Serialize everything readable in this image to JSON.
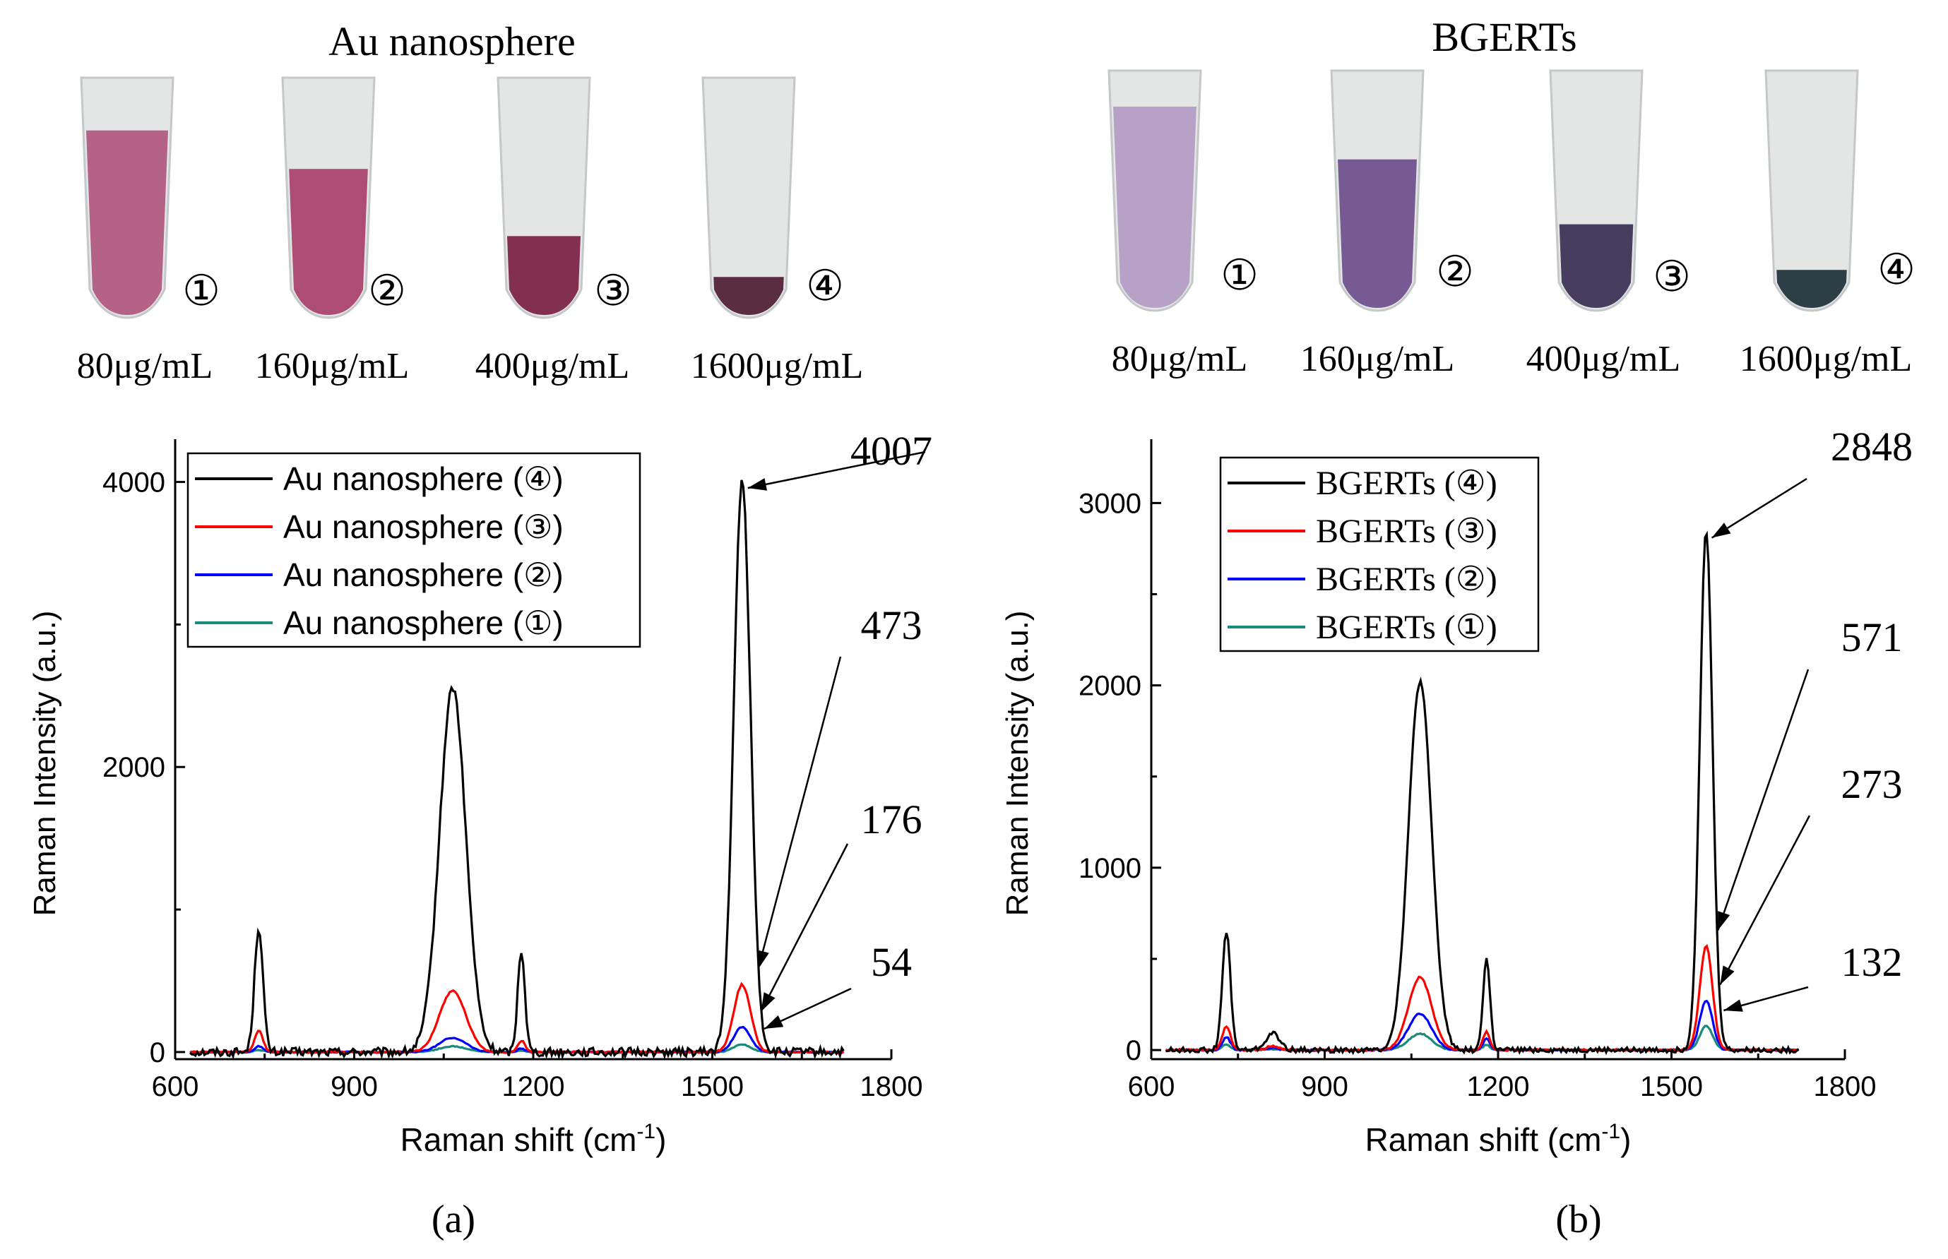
{
  "panels": [
    {
      "id": "a",
      "photo_title": "Au nanosphere",
      "tube_colors": [
        "#b0577f",
        "#a8406a",
        "#7a1f43",
        "#4e1d33"
      ],
      "tube_fill": [
        0.78,
        0.62,
        0.34,
        0.17
      ],
      "tubes": [
        {
          "marker": "①",
          "label": "80μg/mL"
        },
        {
          "marker": "②",
          "label": "160μg/mL"
        },
        {
          "marker": "③",
          "label": "400μg/mL"
        },
        {
          "marker": "④",
          "label": "1600μg/mL"
        }
      ],
      "caption": "(a)"
    },
    {
      "id": "b",
      "photo_title": "BGERTs",
      "tube_colors": [
        "#b49bc4",
        "#6e4d8d",
        "#3a2f52",
        "#1e3038"
      ],
      "tube_fill": [
        0.85,
        0.63,
        0.36,
        0.17
      ],
      "tubes": [
        {
          "marker": "①",
          "label": "80μg/mL"
        },
        {
          "marker": "②",
          "label": "160μg/mL"
        },
        {
          "marker": "③",
          "label": "400μg/mL"
        },
        {
          "marker": "④",
          "label": "1600μg/mL"
        }
      ],
      "caption": "(b)"
    }
  ],
  "chart_data": [
    {
      "type": "line",
      "xlabel": "Raman shift (cm",
      "xlabel_sup": "-1",
      "xlabel_end": ")",
      "ylabel": "Raman Intensity (a.u.)",
      "xlim": [
        600,
        1800
      ],
      "ylim": [
        -50,
        4300
      ],
      "xticks": [
        600,
        900,
        1200,
        1500,
        1800
      ],
      "yticks": [
        0,
        2000,
        4000
      ],
      "peak_positions": [
        740,
        1065,
        1180,
        1550
      ],
      "peak_widths": [
        7,
        22,
        6,
        14
      ],
      "series": [
        {
          "name": "Au nanosphere (④)",
          "color": "#000000",
          "peaks": [
            880,
            2560,
            720,
            4007
          ],
          "noise": 30
        },
        {
          "name": "Au nanosphere (③)",
          "color": "#ff0000",
          "peaks": [
            150,
            430,
            80,
            473
          ],
          "noise": 6
        },
        {
          "name": "Au nanosphere (②)",
          "color": "#0000ff",
          "peaks": [
            40,
            100,
            25,
            176
          ],
          "noise": 4
        },
        {
          "name": "Au nanosphere (①)",
          "color": "#1a8a7a",
          "peaks": [
            15,
            40,
            10,
            54
          ],
          "noise": 3
        }
      ],
      "annotations": [
        {
          "text": "4007",
          "x": 1550,
          "y": 4007
        },
        {
          "text": "473",
          "x": 1565,
          "y": 473
        },
        {
          "text": "176",
          "x": 1570,
          "y": 176
        },
        {
          "text": "54",
          "x": 1575,
          "y": 54
        }
      ],
      "legend_position": "top-left"
    },
    {
      "type": "line",
      "xlabel": "Raman shift (cm",
      "xlabel_sup": "-1",
      "xlabel_end": ")",
      "ylabel": "Raman Intensity (a.u.)",
      "xlim": [
        600,
        1800
      ],
      "ylim": [
        -50,
        3350
      ],
      "xticks": [
        600,
        900,
        1200,
        1500,
        1800
      ],
      "yticks": [
        0,
        1000,
        2000,
        3000
      ],
      "peak_positions": [
        730,
        810,
        1065,
        1180,
        1560
      ],
      "peak_widths": [
        7,
        12,
        20,
        6,
        11
      ],
      "series": [
        {
          "name": "BGERTs (④)",
          "color": "#000000",
          "peaks": [
            650,
            90,
            2020,
            500,
            2848
          ],
          "noise": 14
        },
        {
          "name": "BGERTs (③)",
          "color": "#ff0000",
          "peaks": [
            130,
            20,
            400,
            100,
            571
          ],
          "noise": 5
        },
        {
          "name": "BGERTs (②)",
          "color": "#0000ff",
          "peaks": [
            70,
            10,
            200,
            60,
            273
          ],
          "noise": 4
        },
        {
          "name": "BGERTs (①)",
          "color": "#1a8a7a",
          "peaks": [
            30,
            5,
            90,
            30,
            132
          ],
          "noise": 3
        }
      ],
      "annotations": [
        {
          "text": "2848",
          "x": 1560,
          "y": 2848
        },
        {
          "text": "571",
          "x": 1568,
          "y": 571
        },
        {
          "text": "273",
          "x": 1572,
          "y": 273
        },
        {
          "text": "132",
          "x": 1578,
          "y": 132
        }
      ],
      "legend_position": "top-left"
    }
  ]
}
